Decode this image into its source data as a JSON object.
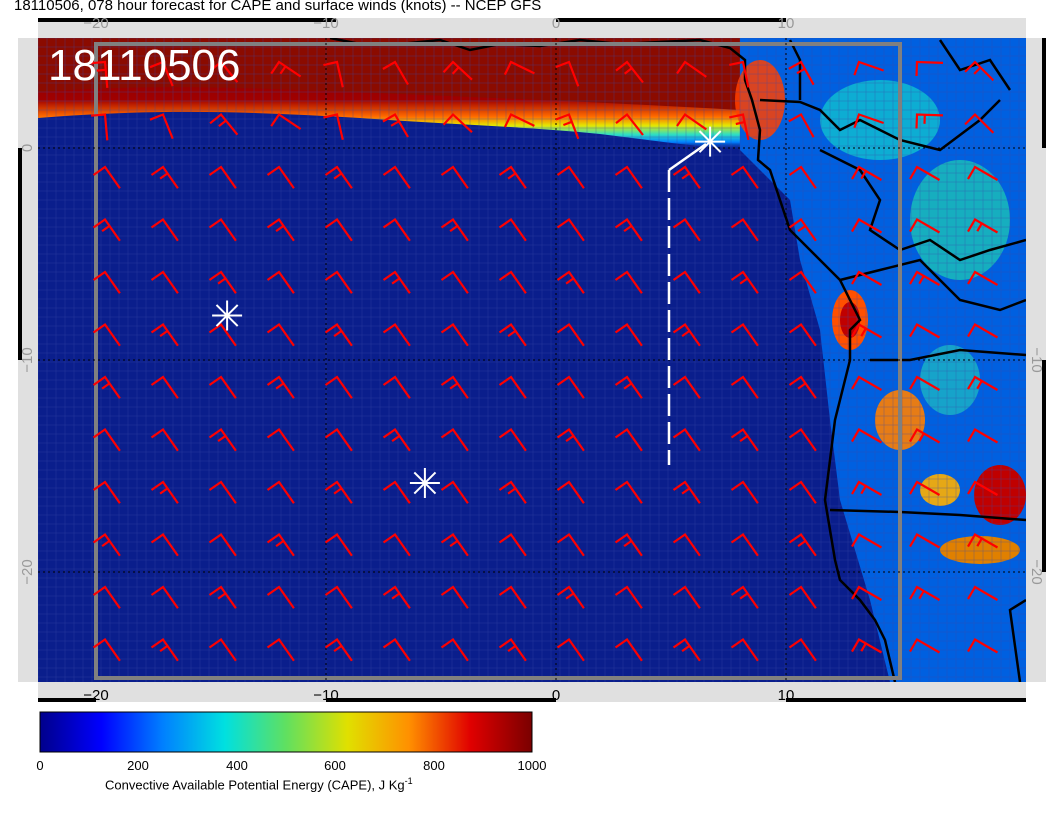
{
  "title": "18110506, 078 hour forecast for CAPE and surface winds (knots) -- NCEP GFS",
  "stamp": "18110506",
  "colors": {
    "ocean": "#0a1e8c",
    "tropical_band": "#8b0b00",
    "wind_barb": "#ff0000",
    "coast": "#000000",
    "marker": "#ffffff",
    "box": "#808080"
  },
  "axes": {
    "top_ticks": [
      "−20",
      "−10",
      "0",
      "10"
    ],
    "bottom_ticks": [
      "−20",
      "−10",
      "0",
      "10"
    ],
    "left_ticks": [
      "0",
      "−10",
      "−20"
    ],
    "right_ticks": [
      "−10",
      "−20"
    ]
  },
  "markers": [
    {
      "name": "ship-marker-west",
      "lon": -14.3,
      "lat": -7.9
    },
    {
      "name": "ship-marker-south",
      "lon": -5.7,
      "lat": -15.8
    },
    {
      "name": "ship-marker-north",
      "lon": 6.7,
      "lat": 0.3
    }
  ],
  "colorbar": {
    "title": "Convective Available Potential Energy (CAPE), J Kg",
    "title_sup": "-1",
    "ticks": [
      "0",
      "200",
      "400",
      "600",
      "800",
      "1000"
    ],
    "stops": [
      "#00008b",
      "#0000ff",
      "#0080ff",
      "#00e0e0",
      "#60e060",
      "#e0e000",
      "#ff9000",
      "#e00000",
      "#7a0000"
    ]
  }
}
